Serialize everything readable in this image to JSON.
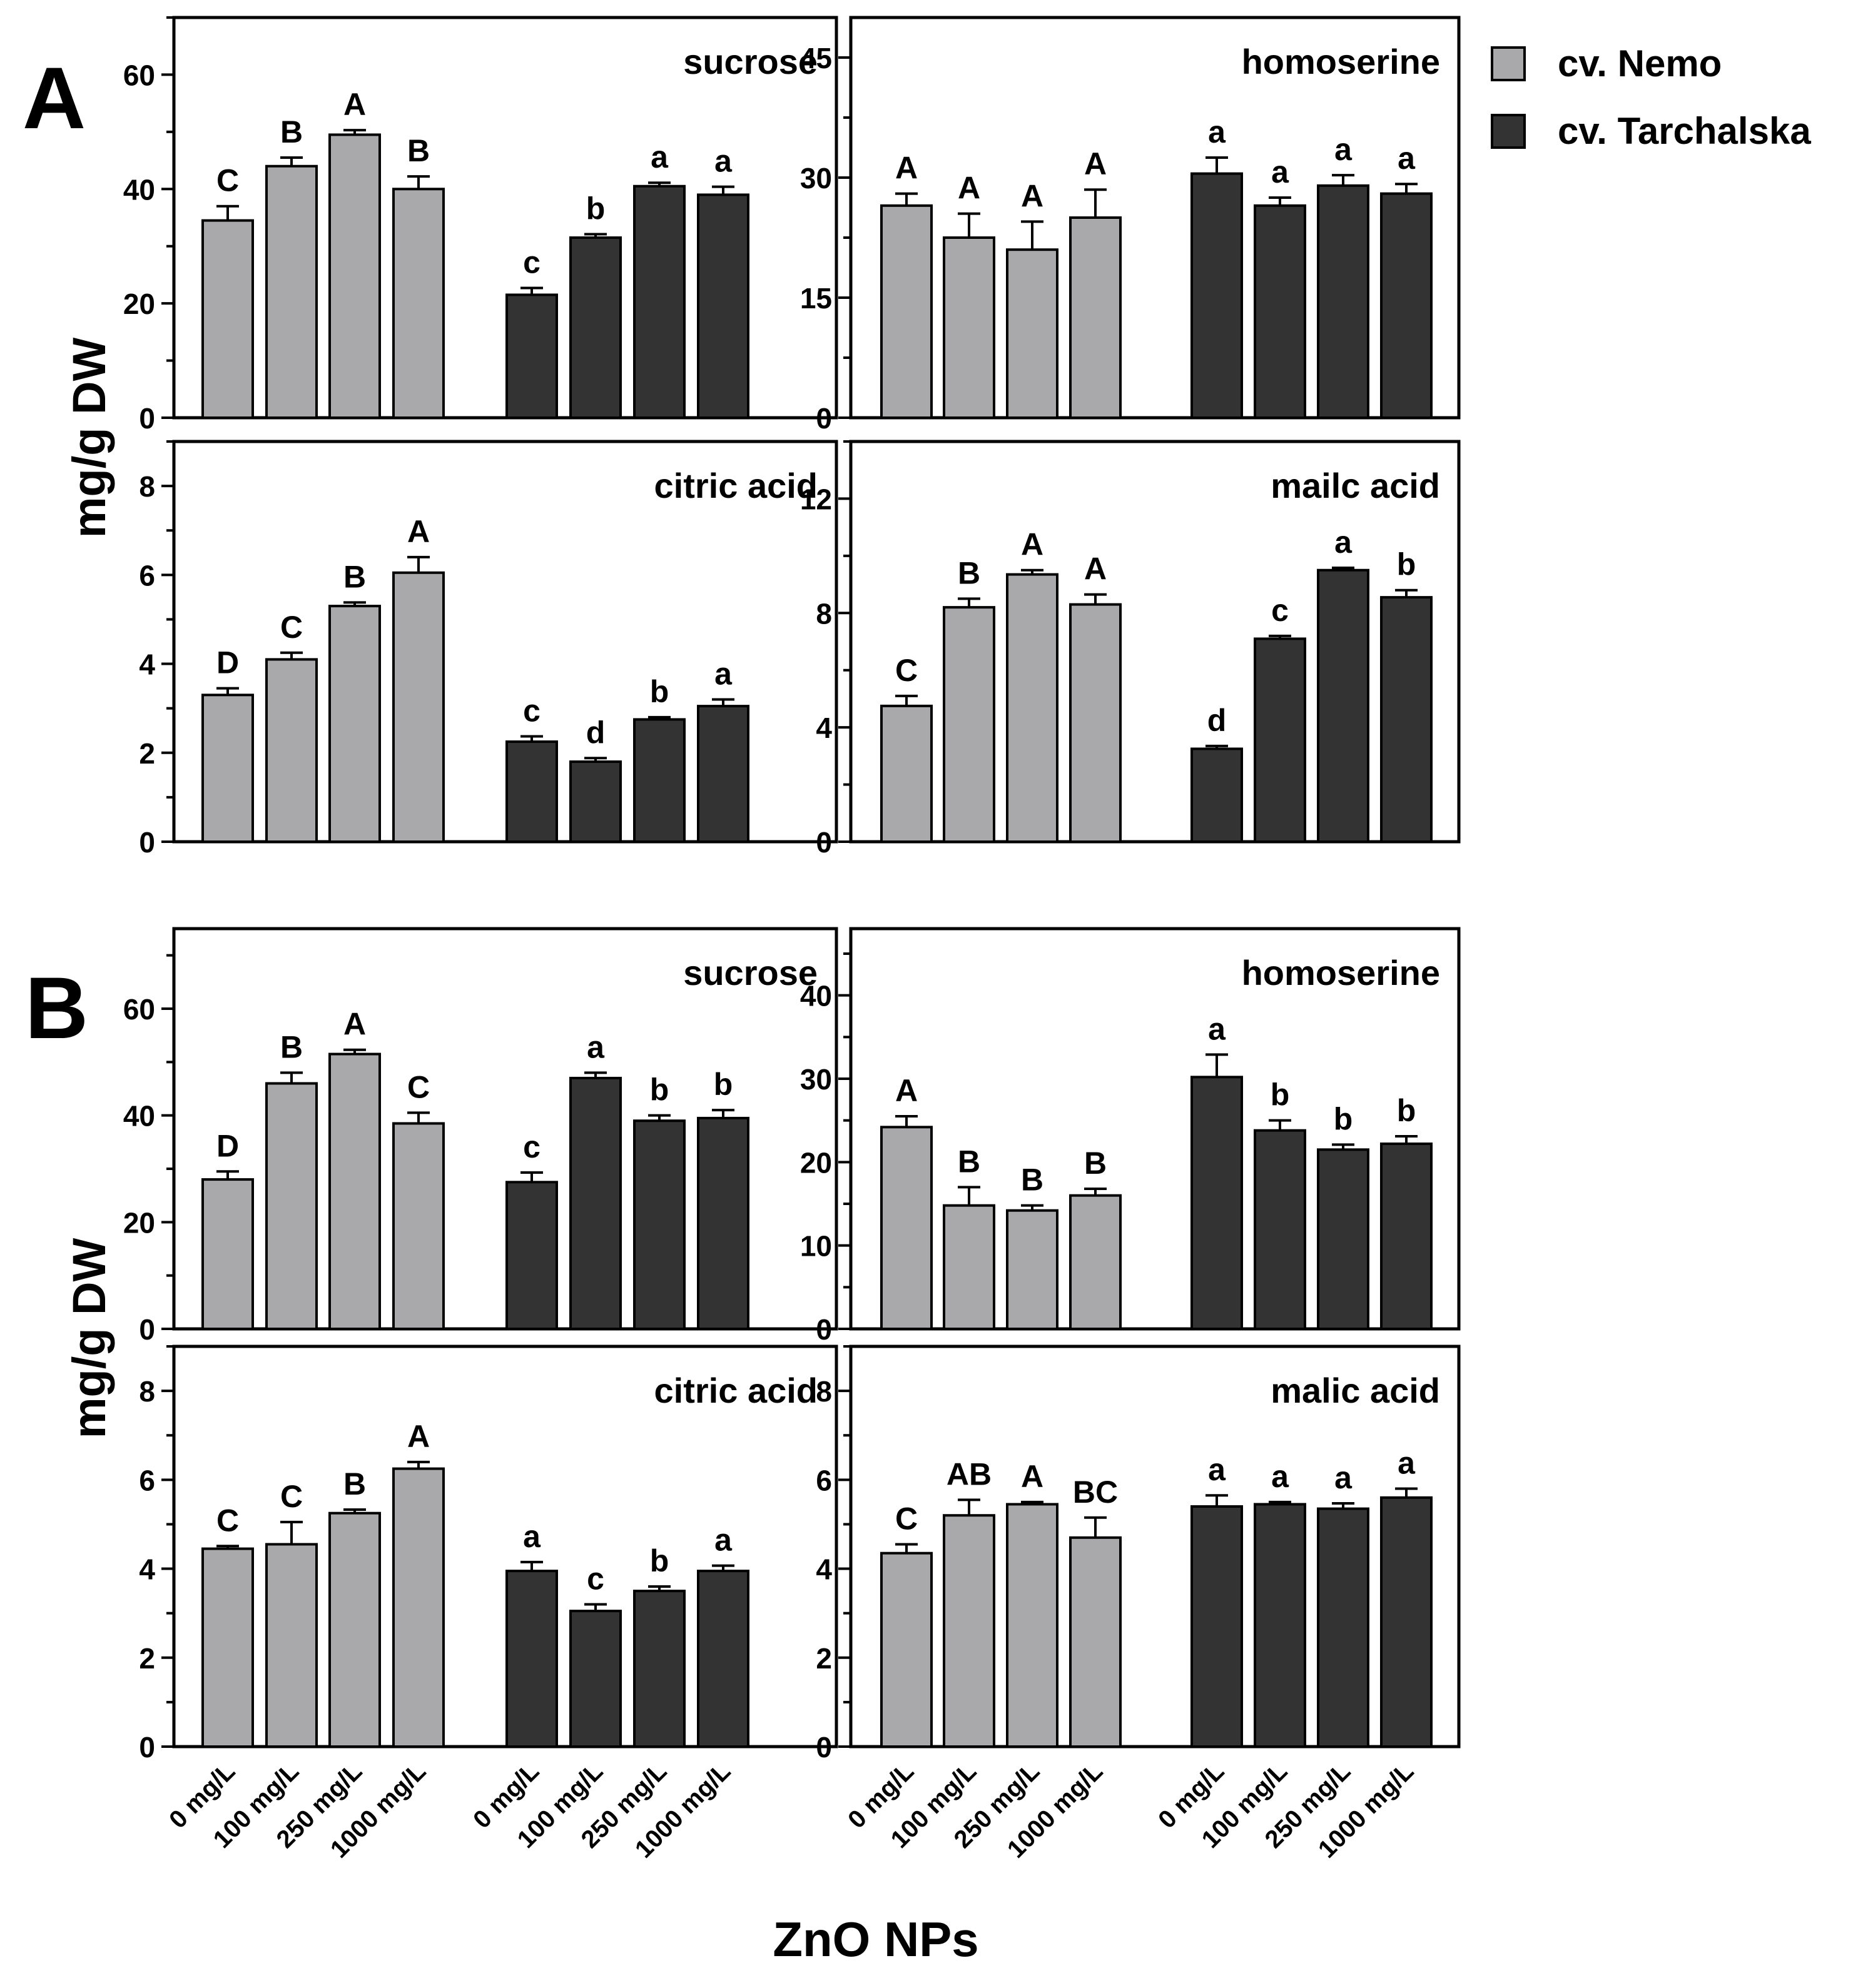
{
  "colors": {
    "nemo": "#a9a9ab",
    "tarchalska": "#333333",
    "frame": "#000000"
  },
  "legend": [
    {
      "label": "cv. Nemo",
      "color": "#a9a9ab"
    },
    {
      "label": "cv. Tarchalska",
      "color": "#333333"
    }
  ],
  "figure": {
    "ylabel": "mg/g DW",
    "xlabel": "ZnO NPs",
    "section_labels": [
      "A",
      "B"
    ],
    "x_tick_labels": [
      "0 mg/L",
      "100 mg/L",
      "250 mg/L",
      "1000 mg/L",
      "0 mg/L",
      "100 mg/L",
      "250 mg/L",
      "1000 mg/L"
    ]
  },
  "chart_data": [
    {
      "section": "A",
      "title": "sucrose",
      "type": "bar",
      "ylim": [
        0,
        70
      ],
      "yticks": [
        0,
        20,
        40,
        60
      ],
      "groups": [
        "0 mg/L",
        "100 mg/L",
        "250 mg/L",
        "1000 mg/L"
      ],
      "series": [
        {
          "name": "cv. Nemo",
          "values": [
            34.5,
            44,
            49.5,
            40
          ],
          "errors": [
            2.5,
            1.5,
            0.8,
            2.2
          ],
          "letters": [
            "C",
            "B",
            "A",
            "B"
          ]
        },
        {
          "name": "cv. Tarchalska",
          "values": [
            21.5,
            31.5,
            40.5,
            39
          ],
          "errors": [
            1.2,
            0.6,
            0.6,
            1.4
          ],
          "letters": [
            "c",
            "b",
            "a",
            "a"
          ]
        }
      ]
    },
    {
      "section": "A",
      "title": "homoserine",
      "type": "bar",
      "ylim": [
        0,
        50
      ],
      "yticks": [
        0,
        15,
        30,
        45
      ],
      "groups": [
        "0 mg/L",
        "100 mg/L",
        "250 mg/L",
        "1000 mg/L"
      ],
      "series": [
        {
          "name": "cv. Nemo",
          "values": [
            26.5,
            22.5,
            21,
            25
          ],
          "errors": [
            1.5,
            3,
            3.5,
            3.5
          ],
          "letters": [
            "A",
            "A",
            "A",
            "A"
          ]
        },
        {
          "name": "cv. Tarchalska",
          "values": [
            30.5,
            26.5,
            29,
            28
          ],
          "errors": [
            2,
            1,
            1.3,
            1.2
          ],
          "letters": [
            "a",
            "a",
            "a",
            "a"
          ]
        }
      ]
    },
    {
      "section": "A",
      "title": "citric acid",
      "type": "bar",
      "ylim": [
        0,
        9
      ],
      "yticks": [
        0,
        2,
        4,
        6,
        8
      ],
      "groups": [
        "0 mg/L",
        "100 mg/L",
        "250 mg/L",
        "1000 mg/L"
      ],
      "series": [
        {
          "name": "cv. Nemo",
          "values": [
            3.3,
            4.1,
            5.3,
            6.05
          ],
          "errors": [
            0.15,
            0.15,
            0.08,
            0.35
          ],
          "letters": [
            "D",
            "C",
            "B",
            "A"
          ]
        },
        {
          "name": "cv. Tarchalska",
          "values": [
            2.25,
            1.8,
            2.75,
            3.05
          ],
          "errors": [
            0.12,
            0.08,
            0.05,
            0.15
          ],
          "letters": [
            "c",
            "d",
            "b",
            "a"
          ]
        }
      ]
    },
    {
      "section": "A",
      "title": "mailc acid",
      "type": "bar",
      "ylim": [
        0,
        14
      ],
      "yticks": [
        0,
        4,
        8,
        12
      ],
      "groups": [
        "0 mg/L",
        "100 mg/L",
        "250 mg/L",
        "1000 mg/L"
      ],
      "series": [
        {
          "name": "cv. Nemo",
          "values": [
            4.75,
            8.2,
            9.35,
            8.3
          ],
          "errors": [
            0.35,
            0.3,
            0.15,
            0.35
          ],
          "letters": [
            "C",
            "B",
            "A",
            "A"
          ]
        },
        {
          "name": "cv. Tarchalska",
          "values": [
            3.25,
            7.1,
            9.5,
            8.55
          ],
          "errors": [
            0.1,
            0.1,
            0.08,
            0.25
          ],
          "letters": [
            "d",
            "c",
            "a",
            "b"
          ]
        }
      ]
    },
    {
      "section": "B",
      "title": "sucrose",
      "type": "bar",
      "ylim": [
        0,
        75
      ],
      "yticks": [
        0,
        20,
        40,
        60
      ],
      "groups": [
        "0 mg/L",
        "100 mg/L",
        "250 mg/L",
        "1000 mg/L"
      ],
      "series": [
        {
          "name": "cv. Nemo",
          "values": [
            28,
            46,
            51.5,
            38.5
          ],
          "errors": [
            1.5,
            2,
            0.8,
            2
          ],
          "letters": [
            "D",
            "B",
            "A",
            "C"
          ]
        },
        {
          "name": "cv. Tarchalska",
          "values": [
            27.5,
            47,
            39,
            39.5
          ],
          "errors": [
            1.8,
            1,
            1,
            1.5
          ],
          "letters": [
            "c",
            "a",
            "b",
            "b"
          ]
        }
      ]
    },
    {
      "section": "B",
      "title": "homoserine",
      "type": "bar",
      "ylim": [
        0,
        48
      ],
      "yticks": [
        0,
        10,
        20,
        30,
        40
      ],
      "groups": [
        "0 mg/L",
        "100 mg/L",
        "250 mg/L",
        "1000 mg/L"
      ],
      "series": [
        {
          "name": "cv. Nemo",
          "values": [
            24.2,
            14.8,
            14.2,
            16
          ],
          "errors": [
            1.3,
            2.2,
            0.6,
            0.8
          ],
          "letters": [
            "A",
            "B",
            "B",
            "B"
          ]
        },
        {
          "name": "cv. Tarchalska",
          "values": [
            30.2,
            23.8,
            21.5,
            22.2
          ],
          "errors": [
            2.7,
            1.2,
            0.6,
            0.9
          ],
          "letters": [
            "a",
            "b",
            "b",
            "b"
          ]
        }
      ]
    },
    {
      "section": "B",
      "title": "citric acid",
      "type": "bar",
      "ylim": [
        0,
        9
      ],
      "yticks": [
        0,
        2,
        4,
        6,
        8
      ],
      "groups": [
        "0 mg/L",
        "100 mg/L",
        "250 mg/L",
        "1000 mg/L"
      ],
      "series": [
        {
          "name": "cv. Nemo",
          "values": [
            4.45,
            4.55,
            5.25,
            6.25
          ],
          "errors": [
            0.06,
            0.5,
            0.08,
            0.15
          ],
          "letters": [
            "C",
            "C",
            "B",
            "A"
          ]
        },
        {
          "name": "cv. Tarchalska",
          "values": [
            3.95,
            3.05,
            3.5,
            3.95
          ],
          "errors": [
            0.2,
            0.15,
            0.1,
            0.12
          ],
          "letters": [
            "a",
            "c",
            "b",
            "a"
          ]
        }
      ]
    },
    {
      "section": "B",
      "title": "malic acid",
      "type": "bar",
      "ylim": [
        0,
        9
      ],
      "yticks": [
        0,
        2,
        4,
        6,
        8
      ],
      "groups": [
        "0 mg/L",
        "100 mg/L",
        "250 mg/L",
        "1000 mg/L"
      ],
      "series": [
        {
          "name": "cv. Nemo",
          "values": [
            4.35,
            5.2,
            5.45,
            4.7
          ],
          "errors": [
            0.2,
            0.35,
            0.05,
            0.45
          ],
          "letters": [
            "C",
            "AB",
            "A",
            "BC"
          ]
        },
        {
          "name": "cv. Tarchalska",
          "values": [
            5.4,
            5.45,
            5.35,
            5.6
          ],
          "errors": [
            0.25,
            0.05,
            0.12,
            0.2
          ],
          "letters": [
            "a",
            "a",
            "a",
            "a"
          ]
        }
      ]
    }
  ]
}
